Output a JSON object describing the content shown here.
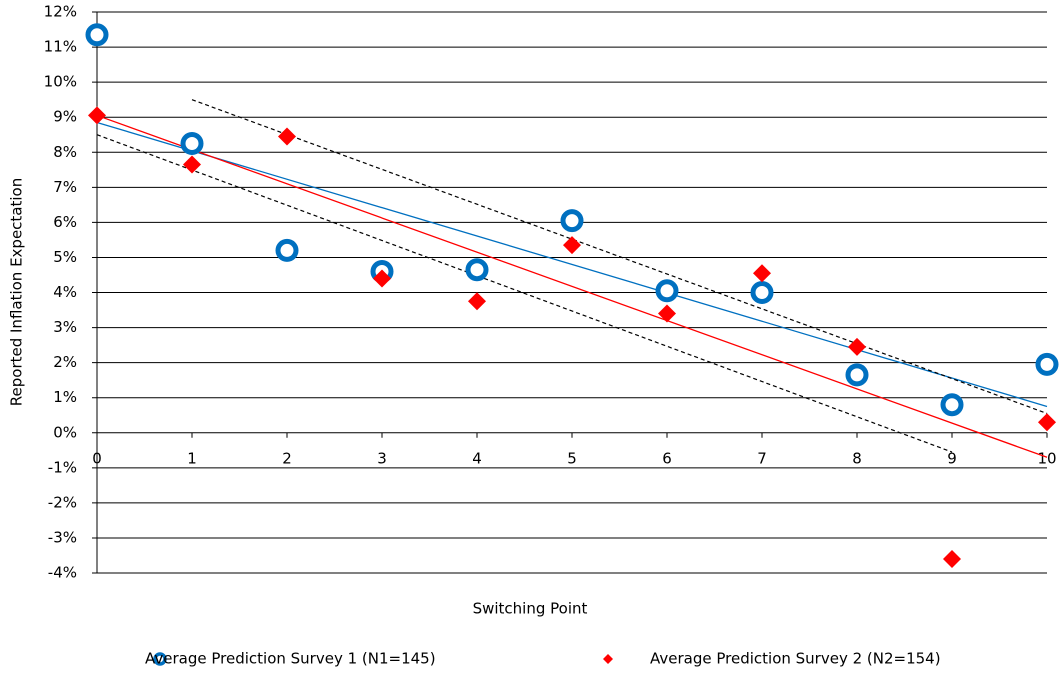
{
  "chart_data": {
    "type": "scatter",
    "x_label": "Switching Point",
    "y_label": "Reported Inflation Expectation",
    "xlim": [
      0,
      10
    ],
    "xticks": [
      0,
      1,
      2,
      3,
      4,
      5,
      6,
      7,
      8,
      9,
      10
    ],
    "ylim": [
      -4,
      12
    ],
    "yticks": [
      {
        "value": -4,
        "label": "-4%"
      },
      {
        "value": -3,
        "label": "-3%"
      },
      {
        "value": -2,
        "label": "-2%"
      },
      {
        "value": -1,
        "label": "-1%"
      },
      {
        "value": 0,
        "label": "0%"
      },
      {
        "value": 1,
        "label": "1%"
      },
      {
        "value": 2,
        "label": "2%"
      },
      {
        "value": 3,
        "label": "3%"
      },
      {
        "value": 4,
        "label": "4%"
      },
      {
        "value": 5,
        "label": "5%"
      },
      {
        "value": 6,
        "label": "6%"
      },
      {
        "value": 7,
        "label": "7%"
      },
      {
        "value": 8,
        "label": "8%"
      },
      {
        "value": 9,
        "label": "9%"
      },
      {
        "value": 10,
        "label": "10%"
      },
      {
        "value": 11,
        "label": "11%"
      },
      {
        "value": 12,
        "label": "12%"
      }
    ],
    "grid": true,
    "legend": "bottom",
    "series": [
      {
        "name": "Average Prediction Survey 1 (N1=145)",
        "color": "#0070c0",
        "marker": "circle",
        "x": [
          0,
          1,
          2,
          3,
          4,
          5,
          6,
          7,
          8,
          9,
          10
        ],
        "values": [
          11.35,
          8.25,
          5.2,
          4.6,
          4.65,
          6.05,
          4.05,
          4.0,
          1.65,
          0.8,
          1.95
        ]
      },
      {
        "name": "Average Prediction Survey 2 (N2=154)",
        "color": "#ff0000",
        "marker": "diamond",
        "x": [
          0,
          1,
          2,
          3,
          4,
          5,
          6,
          7,
          8,
          9,
          10
        ],
        "values": [
          9.05,
          7.65,
          8.45,
          4.4,
          3.75,
          5.35,
          3.4,
          4.55,
          2.45,
          -3.6,
          0.3
        ]
      }
    ],
    "trendlines": [
      {
        "color": "#0070c0",
        "dashed": false,
        "x": [
          0,
          10
        ],
        "values": [
          8.85,
          0.75
        ]
      },
      {
        "color": "#ff0000",
        "dashed": false,
        "x": [
          0,
          10
        ],
        "values": [
          9.05,
          -0.7
        ]
      },
      {
        "color": "#000000",
        "dashed": true,
        "x": [
          1,
          10
        ],
        "values": [
          9.5,
          0.55
        ]
      },
      {
        "color": "#000000",
        "dashed": true,
        "x": [
          0,
          9
        ],
        "values": [
          8.5,
          -0.55
        ]
      }
    ]
  }
}
